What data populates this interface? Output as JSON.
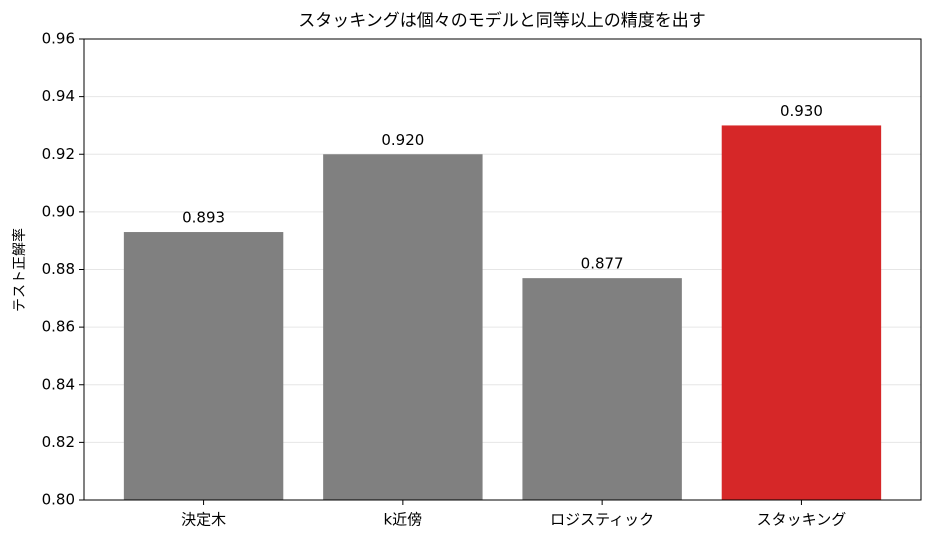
{
  "chart_data": {
    "type": "bar",
    "title": "スタッキングは個々のモデルと同等以上の精度を出す",
    "ylabel": "テスト正解率",
    "categories": [
      "決定木",
      "k近傍",
      "ロジスティック",
      "スタッキング"
    ],
    "values": [
      0.893,
      0.92,
      0.877,
      0.93
    ],
    "value_labels": [
      "0.893",
      "0.920",
      "0.877",
      "0.930"
    ],
    "colors": [
      "#808080",
      "#808080",
      "#808080",
      "#d62728"
    ],
    "ylim": [
      0.8,
      0.96
    ],
    "yticks": [
      {
        "value": 0.8,
        "label": "0.80"
      },
      0.82,
      0.84,
      0.86,
      0.88,
      {
        "value": 0.9,
        "label": "0.90"
      },
      0.92,
      0.94,
      0.96
    ],
    "grid": true
  }
}
